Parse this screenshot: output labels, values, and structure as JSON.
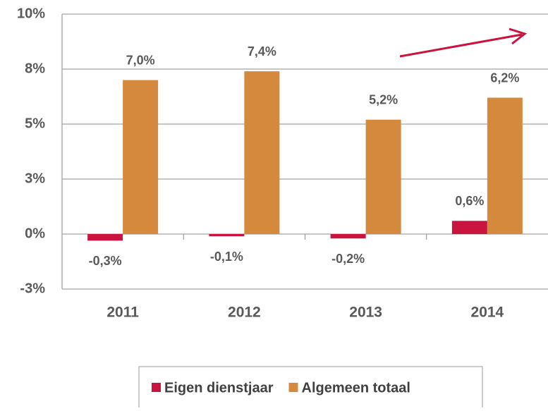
{
  "chart_data": {
    "type": "bar",
    "categories": [
      "2011",
      "2012",
      "2013",
      "2014"
    ],
    "series": [
      {
        "name": "Eigen dienstjaar",
        "color": "#c8143f",
        "values": [
          -0.3,
          -0.1,
          -0.2,
          0.6
        ],
        "value_labels": [
          "-0,3%",
          "-0,1%",
          "-0,2%",
          "0,6%"
        ]
      },
      {
        "name": "Algemeen totaal",
        "color": "#d4893d",
        "values": [
          7.0,
          7.4,
          5.2,
          6.2
        ],
        "value_labels": [
          "7,0%",
          "7,4%",
          "5,2%",
          "6,2%"
        ]
      }
    ],
    "ylim": [
      -2.5,
      10
    ],
    "yticks": [
      {
        "value": -2.5,
        "label": "-3%"
      },
      {
        "value": 0,
        "label": "0%"
      },
      {
        "value": 2.5,
        "label": "3%"
      },
      {
        "value": 5,
        "label": "5%"
      },
      {
        "value": 7.5,
        "label": "8%"
      },
      {
        "value": 10,
        "label": "10%"
      }
    ],
    "grid": true,
    "legend": "bottom"
  }
}
